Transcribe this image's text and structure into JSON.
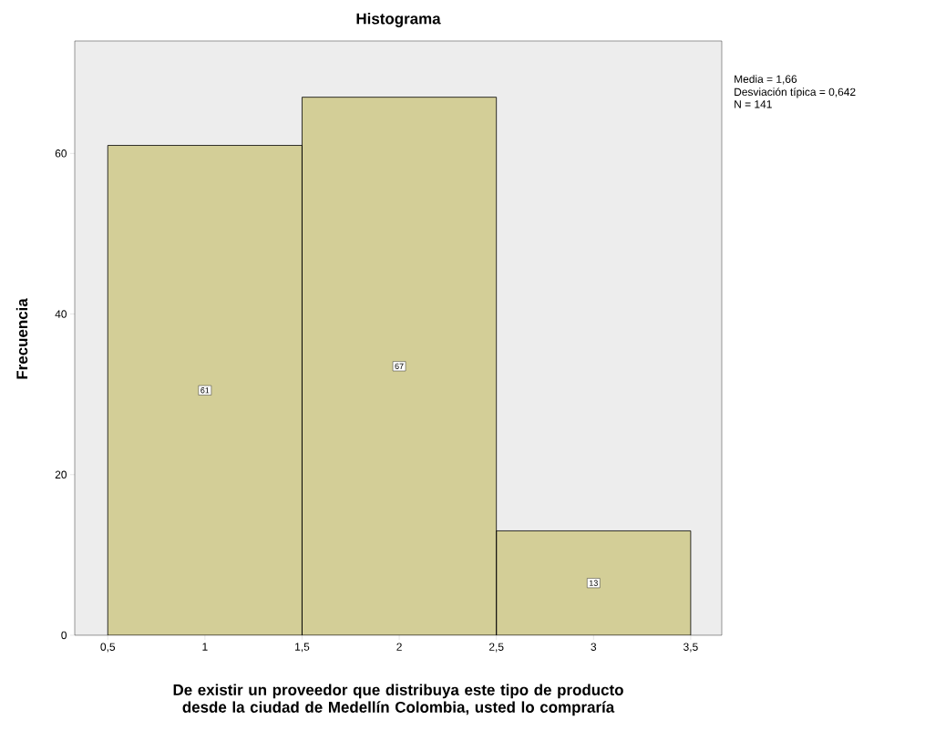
{
  "chart_data": {
    "type": "histogram",
    "title": "Histograma",
    "xlabel": "De existir un proveedor que distribuya este tipo de producto desde la ciudad de Medellín Colombia, usted lo compraría",
    "ylabel": "Frecuencia",
    "bins": [
      0.5,
      1.5,
      2.5,
      3.5
    ],
    "values": [
      61,
      67,
      13
    ],
    "color": "#d3ce97",
    "data_labels": true,
    "xlim": [
      0.33,
      3.66
    ],
    "ylim": [
      0,
      74
    ],
    "xticks": [
      {
        "value": 0.5,
        "label": "0,5"
      },
      1,
      {
        "value": 1.5,
        "label": "1,5"
      },
      2,
      {
        "value": 2.5,
        "label": "2,5"
      },
      3,
      {
        "value": 3.5,
        "label": "3,5"
      }
    ],
    "yticks": [
      0,
      20,
      40,
      60
    ],
    "grid": false,
    "annotations": [
      "Media = 1,66",
      "Desviación típica = 0,642",
      "N = 141"
    ]
  }
}
